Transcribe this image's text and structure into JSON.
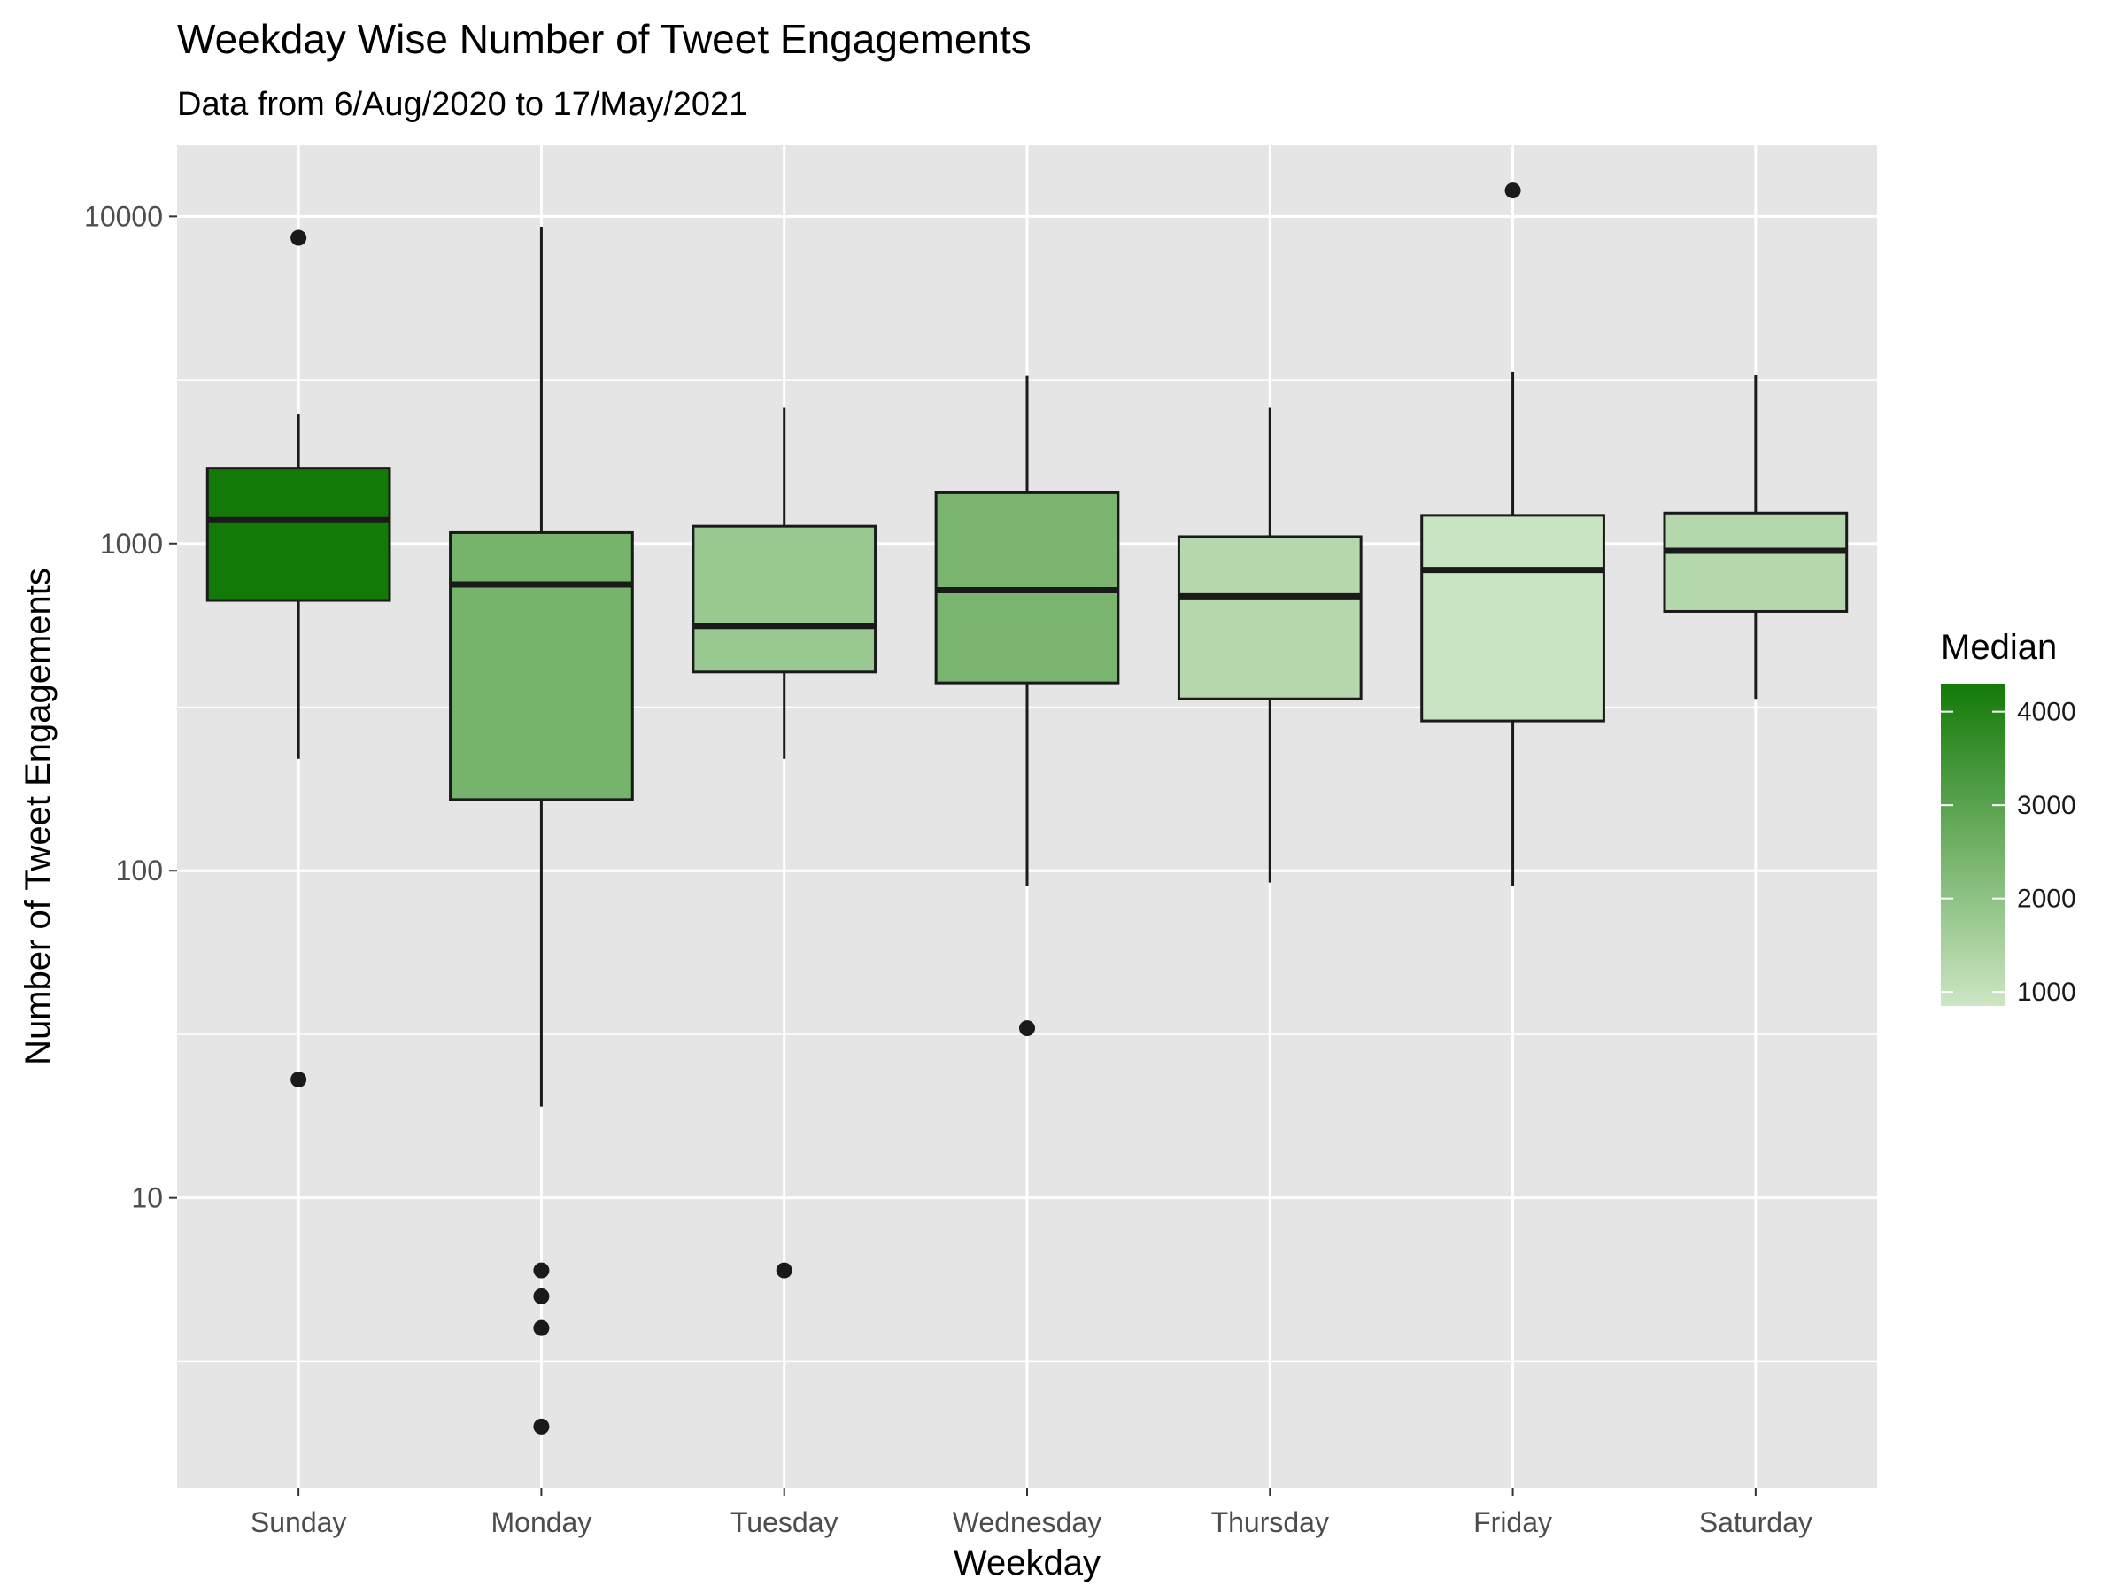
{
  "chart_data": {
    "type": "boxplot",
    "title": "Weekday Wise Number of Tweet Engagements",
    "subtitle": "Data from 6/Aug/2020 to 17/May/2021",
    "xlabel": "Weekday",
    "ylabel": "Number of Tweet Engagements",
    "yscale": "log10",
    "ylim": [
      1.3,
      16500
    ],
    "yticks": [
      10,
      100,
      1000,
      10000
    ],
    "ytick_labels": [
      "10",
      "100",
      "1000",
      "10000"
    ],
    "grid": true,
    "categories": [
      "Sunday",
      "Monday",
      "Tuesday",
      "Wednesday",
      "Thursday",
      "Friday",
      "Saturday"
    ],
    "boxes": [
      {
        "category": "Sunday",
        "whisker_low": 220,
        "q1": 670,
        "median": 1180,
        "q3": 1700,
        "whisker_high": 2480,
        "outliers": [
          8600,
          23
        ],
        "fill_median": 4300
      },
      {
        "category": "Monday",
        "whisker_low": 19,
        "q1": 165,
        "median": 750,
        "q3": 1080,
        "whisker_high": 9300,
        "outliers": [
          6,
          5,
          4,
          2
        ],
        "fill_median": 2450
      },
      {
        "category": "Tuesday",
        "whisker_low": 220,
        "q1": 405,
        "median": 560,
        "q3": 1130,
        "whisker_high": 2600,
        "outliers": [
          6
        ],
        "fill_median": 1800
      },
      {
        "category": "Wednesday",
        "whisker_low": 90,
        "q1": 375,
        "median": 720,
        "q3": 1430,
        "whisker_high": 3250,
        "outliers": [
          33
        ],
        "fill_median": 2400
      },
      {
        "category": "Thursday",
        "whisker_low": 92,
        "q1": 335,
        "median": 690,
        "q3": 1050,
        "whisker_high": 2600,
        "outliers": [],
        "fill_median": 1300
      },
      {
        "category": "Friday",
        "whisker_low": 90,
        "q1": 287,
        "median": 830,
        "q3": 1220,
        "whisker_high": 3350,
        "outliers": [
          12000
        ],
        "fill_median": 900
      },
      {
        "category": "Saturday",
        "whisker_low": 335,
        "q1": 620,
        "median": 950,
        "q3": 1240,
        "whisker_high": 3280,
        "outliers": [],
        "fill_median": 1300
      }
    ],
    "legend": {
      "title": "Median",
      "position": "right",
      "range": [
        850,
        4300
      ],
      "ticks": [
        1000,
        2000,
        3000,
        4000
      ],
      "tick_labels": [
        "1000",
        "2000",
        "3000",
        "4000"
      ],
      "low_color": "#cce6c4",
      "high_color": "#137a07"
    },
    "colors": {
      "panel_background": "#e5e5e5",
      "grid": "#ffffff",
      "box_outline": "#1a1a1a"
    }
  }
}
